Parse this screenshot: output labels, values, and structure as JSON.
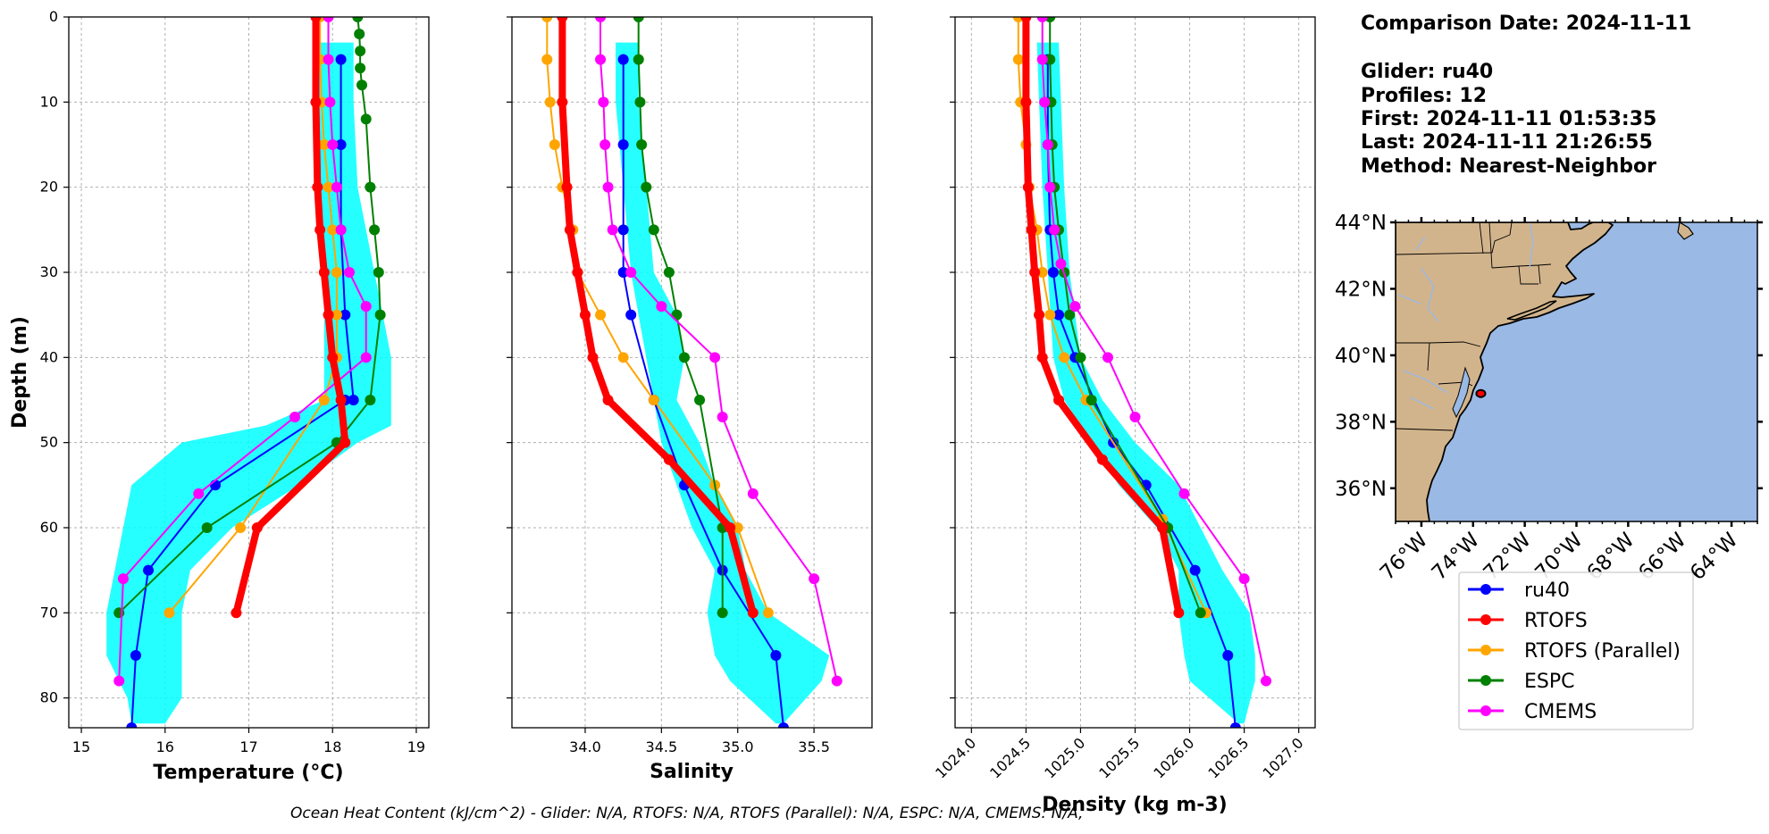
{
  "info": {
    "comparison_date": "Comparison Date: 2024-11-11",
    "glider": "Glider: ru40",
    "profiles": "Profiles: 12",
    "first": "First: 2024-11-11 01:53:35",
    "last": "Last: 2024-11-11 21:26:55",
    "method": "Method: Nearest-Neighbor"
  },
  "footer": "Ocean Heat Content (kJ/cm^2) - Glider: N/A,  RTOFS: N/A,  RTOFS (Parallel): N/A,  ESPC: N/A,  CMEMS: N/A,",
  "colors": {
    "ru40": "#0000ff",
    "RTOFS": "#ff0000",
    "RTOFS (Parallel)": "#ffa500",
    "ESPC": "#008000",
    "CMEMS": "#ff00ff",
    "glider_points": "#00ffff",
    "land": "#d2b48c",
    "ocean": "#9ab9e4"
  },
  "chart_data": [
    {
      "type": "line",
      "title": "",
      "xlabel": "Temperature (°C)",
      "ylabel": "Depth (m)",
      "xlim": [
        14.85,
        19.15
      ],
      "ylim": [
        0,
        83.5
      ],
      "y_inverted": true,
      "x_ticks": [
        "15",
        "16",
        "17",
        "18",
        "19"
      ],
      "y_ticks": [
        "0",
        "10",
        "20",
        "30",
        "40",
        "50",
        "60",
        "70",
        "80"
      ],
      "grid": true,
      "glider_scatter_envelope": {
        "depth": [
          3,
          10,
          20,
          30,
          40,
          45,
          48,
          50,
          55,
          60,
          65,
          70,
          75,
          80,
          83
        ],
        "min": [
          17.8,
          17.8,
          17.85,
          17.9,
          17.9,
          17.9,
          17.2,
          16.2,
          15.6,
          15.5,
          15.4,
          15.3,
          15.3,
          15.55,
          15.6
        ],
        "max": [
          18.25,
          18.25,
          18.3,
          18.5,
          18.7,
          18.7,
          18.7,
          18.3,
          17.6,
          16.8,
          16.3,
          16.2,
          16.2,
          16.2,
          16.0
        ]
      },
      "series": [
        {
          "name": "ru40",
          "x": [
            18.1,
            18.1,
            18.1,
            18.15,
            18.25,
            18.15,
            16.6,
            15.8,
            15.65,
            15.6
          ],
          "y": [
            5,
            15,
            25,
            35,
            45,
            45,
            55,
            65,
            75,
            83.5
          ]
        },
        {
          "name": "RTOFS",
          "x": [
            17.8,
            17.8,
            17.82,
            17.85,
            17.9,
            17.95,
            18.0,
            18.1,
            18.15,
            17.1,
            16.85
          ],
          "y": [
            0,
            10,
            20,
            25,
            30,
            35,
            40,
            45,
            50,
            60,
            70
          ]
        },
        {
          "name": "RTOFS (Parallel)",
          "x": [
            17.85,
            17.85,
            17.87,
            17.9,
            17.95,
            18.0,
            18.05,
            18.05,
            18.05,
            17.9,
            16.9,
            16.05
          ],
          "y": [
            0,
            5,
            10,
            15,
            20,
            25,
            30,
            35,
            40,
            45,
            60,
            70
          ]
        },
        {
          "name": "ESPC",
          "x": [
            18.3,
            18.32,
            18.33,
            18.33,
            18.35,
            18.4,
            18.45,
            18.5,
            18.55,
            18.57,
            18.45,
            18.05,
            16.5,
            15.45
          ],
          "y": [
            0,
            2,
            4,
            6,
            8,
            12,
            20,
            25,
            30,
            35,
            45,
            50,
            60,
            70
          ]
        },
        {
          "name": "CMEMS",
          "x": [
            17.95,
            17.95,
            17.97,
            18.0,
            18.05,
            18.1,
            18.2,
            18.4,
            18.4,
            17.55,
            16.4,
            15.5,
            15.45
          ],
          "y": [
            0,
            5,
            10,
            15,
            20,
            25,
            30,
            34,
            40,
            47,
            56,
            66,
            78
          ]
        }
      ]
    },
    {
      "type": "line",
      "title": "",
      "xlabel": "Salinity",
      "ylabel": "",
      "xlim": [
        33.52,
        35.88
      ],
      "ylim": [
        0,
        83.5
      ],
      "y_inverted": true,
      "x_ticks": [
        "34.0",
        "34.5",
        "35.0",
        "35.5"
      ],
      "grid": true,
      "glider_scatter_envelope": {
        "depth": [
          3,
          10,
          20,
          30,
          35,
          40,
          45,
          50,
          55,
          60,
          65,
          70,
          75,
          78,
          83
        ],
        "min": [
          34.2,
          34.2,
          34.25,
          34.3,
          34.35,
          34.4,
          34.45,
          34.5,
          34.6,
          34.7,
          34.85,
          34.8,
          34.85,
          34.95,
          35.25
        ],
        "max": [
          34.35,
          34.35,
          34.4,
          34.45,
          34.6,
          34.65,
          34.6,
          34.75,
          34.85,
          35.0,
          35.05,
          35.2,
          35.6,
          35.55,
          35.3
        ]
      },
      "series": [
        {
          "name": "ru40",
          "x": [
            34.25,
            34.25,
            34.25,
            34.25,
            34.3,
            34.45,
            34.65,
            34.9,
            35.25,
            35.3
          ],
          "y": [
            5,
            15,
            25,
            30,
            35,
            45,
            55,
            65,
            75,
            83.5
          ]
        },
        {
          "name": "RTOFS",
          "x": [
            33.85,
            33.85,
            33.88,
            33.9,
            33.95,
            34.0,
            34.05,
            34.15,
            34.55,
            34.95,
            35.1
          ],
          "y": [
            0,
            10,
            20,
            25,
            30,
            35,
            40,
            45,
            52,
            60,
            70
          ]
        },
        {
          "name": "RTOFS (Parallel)",
          "x": [
            33.75,
            33.75,
            33.77,
            33.8,
            33.85,
            33.92,
            33.95,
            34.1,
            34.25,
            34.45,
            34.85,
            35.0,
            35.2
          ],
          "y": [
            0,
            5,
            10,
            15,
            20,
            25,
            30,
            35,
            40,
            45,
            55,
            60,
            70
          ]
        },
        {
          "name": "ESPC",
          "x": [
            34.35,
            34.35,
            34.36,
            34.37,
            34.4,
            34.45,
            34.55,
            34.6,
            34.65,
            34.75,
            34.9,
            34.9
          ],
          "y": [
            0,
            5,
            10,
            15,
            20,
            25,
            30,
            35,
            40,
            45,
            60,
            70
          ]
        },
        {
          "name": "CMEMS",
          "x": [
            34.1,
            34.1,
            34.12,
            34.13,
            34.15,
            34.18,
            34.3,
            34.5,
            34.85,
            34.9,
            35.1,
            35.5,
            35.65
          ],
          "y": [
            0,
            5,
            10,
            15,
            20,
            25,
            30,
            34,
            40,
            47,
            56,
            66,
            78
          ]
        }
      ]
    },
    {
      "type": "line",
      "title": "",
      "xlabel": "Density (kg m-3)",
      "ylabel": "",
      "xlim": [
        1023.85,
        1027.15
      ],
      "ylim": [
        0,
        83.5
      ],
      "y_inverted": true,
      "x_ticks": [
        "1024.0",
        "1024.5",
        "1025.0",
        "1025.5",
        "1026.0",
        "1026.5",
        "1027.0"
      ],
      "grid": true,
      "glider_scatter_envelope": {
        "depth": [
          3,
          10,
          20,
          30,
          40,
          45,
          50,
          55,
          60,
          65,
          70,
          75,
          78,
          83
        ],
        "min": [
          1024.6,
          1024.62,
          1024.65,
          1024.7,
          1024.75,
          1024.85,
          1025.1,
          1025.35,
          1025.7,
          1025.9,
          1025.9,
          1025.95,
          1026.0,
          1026.45
        ],
        "max": [
          1024.8,
          1024.82,
          1024.85,
          1024.9,
          1025.0,
          1025.2,
          1025.5,
          1025.9,
          1026.1,
          1026.3,
          1026.55,
          1026.6,
          1026.6,
          1026.5
        ]
      },
      "series": [
        {
          "name": "ru40",
          "x": [
            1024.7,
            1024.7,
            1024.72,
            1024.75,
            1024.8,
            1024.95,
            1025.3,
            1025.6,
            1026.05,
            1026.35,
            1026.42
          ],
          "y": [
            5,
            15,
            25,
            30,
            35,
            40,
            50,
            55,
            65,
            75,
            83.5
          ]
        },
        {
          "name": "RTOFS",
          "x": [
            1024.5,
            1024.5,
            1024.52,
            1024.55,
            1024.58,
            1024.62,
            1024.65,
            1024.8,
            1025.2,
            1025.75,
            1025.9
          ],
          "y": [
            0,
            10,
            20,
            25,
            30,
            35,
            40,
            45,
            52,
            60,
            70
          ]
        },
        {
          "name": "RTOFS (Parallel)",
          "x": [
            1024.43,
            1024.43,
            1024.45,
            1024.5,
            1024.53,
            1024.6,
            1024.65,
            1024.72,
            1024.85,
            1025.05,
            1025.75,
            1026.15
          ],
          "y": [
            0,
            5,
            10,
            15,
            20,
            25,
            30,
            35,
            40,
            45,
            59,
            70
          ]
        },
        {
          "name": "ESPC",
          "x": [
            1024.72,
            1024.72,
            1024.73,
            1024.74,
            1024.76,
            1024.8,
            1024.85,
            1024.9,
            1025.0,
            1025.1,
            1025.8,
            1026.1
          ],
          "y": [
            0,
            5,
            10,
            15,
            20,
            25,
            30,
            35,
            40,
            45,
            60,
            70
          ]
        },
        {
          "name": "CMEMS",
          "x": [
            1024.65,
            1024.65,
            1024.67,
            1024.7,
            1024.72,
            1024.76,
            1024.82,
            1024.95,
            1025.25,
            1025.5,
            1025.95,
            1026.5,
            1026.7
          ],
          "y": [
            0,
            5,
            10,
            15,
            20,
            25,
            29,
            34,
            40,
            47,
            56,
            66,
            78
          ]
        }
      ]
    },
    {
      "type": "map",
      "x_ticks": [
        "76°W",
        "74°W",
        "72°W",
        "70°W",
        "68°W",
        "66°W",
        "64°W"
      ],
      "y_ticks": [
        "36°N",
        "38°N",
        "40°N",
        "42°N",
        "44°N"
      ],
      "lon_range": [
        -77,
        -63
      ],
      "lat_range": [
        35,
        44
      ],
      "glider_position": {
        "lon": -73.7,
        "lat": 38.85
      }
    }
  ],
  "legend": [
    {
      "label": "ru40",
      "color": "#0000ff"
    },
    {
      "label": "RTOFS",
      "color": "#ff0000"
    },
    {
      "label": "RTOFS (Parallel)",
      "color": "#ffa500"
    },
    {
      "label": "ESPC",
      "color": "#008000"
    },
    {
      "label": "CMEMS",
      "color": "#ff00ff"
    }
  ]
}
